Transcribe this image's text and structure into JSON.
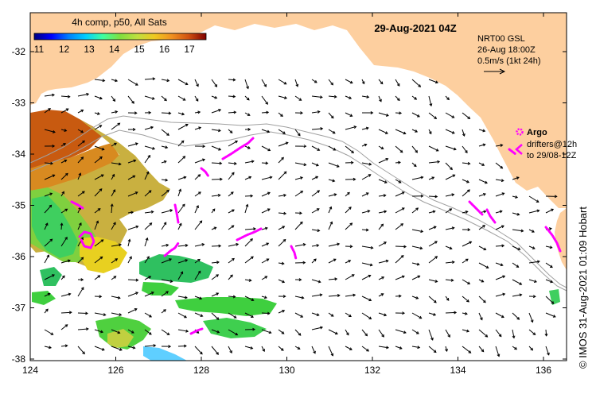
{
  "map": {
    "date_title": "29-Aug-2021 04Z",
    "credit": "© IMOS 31-Aug-2021 01:09 Hobart",
    "lon_ticks": [
      "124",
      "126",
      "128",
      "130",
      "132",
      "134",
      "136"
    ],
    "lat_ticks": [
      "-32",
      "-33",
      "-34",
      "-35",
      "-36",
      "-37",
      "-38"
    ],
    "colors": {
      "land": "#fdcf9f",
      "ocean": "#ffffff",
      "frame": "#000000",
      "argo_markers": "#ff00ff",
      "bathymetry_contour": "#a0a0a0",
      "current_arrows": "#000000"
    }
  },
  "sst_legend": {
    "title": "4h comp, p50, All Sats",
    "ticks": [
      "11",
      "12",
      "13",
      "14",
      "15",
      "16",
      "17"
    ],
    "colormap": [
      "#00007f",
      "#0000ff",
      "#007fff",
      "#00cfff",
      "#3fff9f",
      "#7fdf3f",
      "#bfdf3f",
      "#efc820",
      "#f09020",
      "#d05010",
      "#7f0000"
    ]
  },
  "velocity_legend": {
    "line1": "NRT00 GSL",
    "line2": "26-Aug 18:00Z",
    "line3": "0.5m/s (1kt 24h)"
  },
  "argo_legend": {
    "argo_label": "Argo",
    "drifters_line1": "drifters@12h",
    "drifters_line2": "to 29/08-12Z"
  }
}
